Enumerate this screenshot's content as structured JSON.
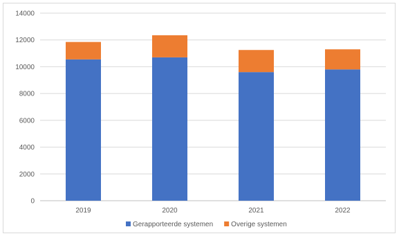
{
  "chart_data": {
    "type": "bar",
    "stacked": true,
    "categories": [
      "2019",
      "2020",
      "2021",
      "2022"
    ],
    "series": [
      {
        "name": "Gerapporteerde systemen",
        "color": "#4472C4",
        "values": [
          10550,
          10700,
          9600,
          9800
        ]
      },
      {
        "name": "Overige systemen",
        "color": "#ED7D31",
        "values": [
          1300,
          1650,
          1650,
          1500
        ]
      }
    ],
    "ylim": [
      0,
      14000
    ],
    "yticks": [
      "0",
      "2000",
      "4000",
      "6000",
      "8000",
      "10000",
      "12000",
      "14000"
    ],
    "grid": true,
    "legend": "bottom"
  }
}
